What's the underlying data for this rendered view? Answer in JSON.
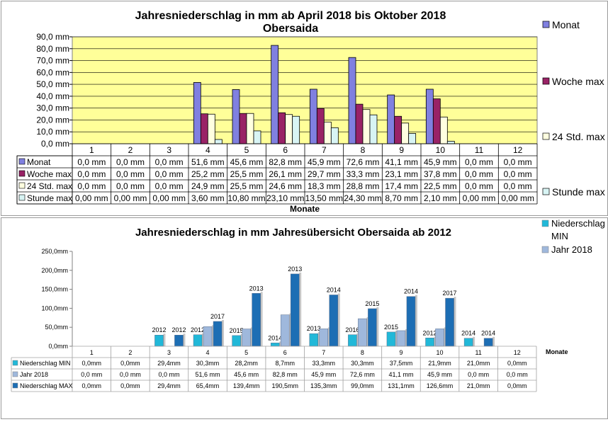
{
  "chart_data": [
    {
      "type": "bar",
      "title": "Jahresniederschlag in mm ab April 2018 bis Oktober 2018",
      "subtitle": "Obersaida",
      "xlabel": "Monate",
      "ylabel": "",
      "ylim": [
        0,
        90
      ],
      "yticks": [
        "0,0 mm",
        "10,0 mm",
        "20,0 mm",
        "30,0 mm",
        "40,0 mm",
        "50,0 mm",
        "60,0 mm",
        "70,0 mm",
        "80,0 mm",
        "90,0 mm"
      ],
      "grid": true,
      "legend_position": "right",
      "categories": [
        "1",
        "2",
        "3",
        "4",
        "5",
        "6",
        "7",
        "8",
        "9",
        "10",
        "11",
        "12"
      ],
      "series": [
        {
          "name": "Monat",
          "color": "#8080e0",
          "values": [
            0,
            0,
            0,
            51.6,
            45.6,
            82.8,
            45.9,
            72.6,
            41.1,
            45.9,
            0,
            0
          ],
          "labels": [
            "0,0 mm",
            "0,0 mm",
            "0,0 mm",
            "51,6 mm",
            "45,6 mm",
            "82,8 mm",
            "45,9 mm",
            "72,6 mm",
            "41,1 mm",
            "45,9 mm",
            "0,0 mm",
            "0,0 mm"
          ]
        },
        {
          "name": "Woche max",
          "color": "#992266",
          "values": [
            0,
            0,
            0,
            25.2,
            25.5,
            26.1,
            29.7,
            33.3,
            23.1,
            37.8,
            0,
            0
          ],
          "labels": [
            "0,0 mm",
            "0,0 mm",
            "0,0 mm",
            "25,2 mm",
            "25,5 mm",
            "26,1 mm",
            "29,7 mm",
            "33,3 mm",
            "23,1 mm",
            "37,8 mm",
            "0,0 mm",
            "0,0 mm"
          ]
        },
        {
          "name": "24 Std. max",
          "color": "#ffffe0",
          "values": [
            0,
            0,
            0,
            24.9,
            25.5,
            24.6,
            18.3,
            28.8,
            17.4,
            22.5,
            0,
            0
          ],
          "labels": [
            "0,0 mm",
            "0,0 mm",
            "0,0 mm",
            "24,9 mm",
            "25,5 mm",
            "24,6 mm",
            "18,3 mm",
            "28,8 mm",
            "17,4 mm",
            "22,5 mm",
            "0,0 mm",
            "0,0 mm"
          ]
        },
        {
          "name": "Stunde max",
          "color": "#d8f4f4",
          "values": [
            0,
            0,
            0,
            3.6,
            10.8,
            23.1,
            13.5,
            24.3,
            8.7,
            2.1,
            0,
            0
          ],
          "labels": [
            "0,00 mm",
            "0,00 mm",
            "0,00 mm",
            "3,60 mm",
            "10,80 mm",
            "23,10 mm",
            "13,50 mm",
            "24,30 mm",
            "8,70 mm",
            "2,10 mm",
            "0,00 mm",
            "0,00 mm"
          ]
        }
      ],
      "colors": {
        "plot_background": "#ffff99"
      }
    },
    {
      "type": "bar",
      "title": "Jahresniederschlag in mm  Jahresübersicht Obersaida ab 2012",
      "xlabel": "Monate",
      "ylabel": "",
      "ylim": [
        0,
        250
      ],
      "yticks": [
        "0,0mm",
        "50,0mm",
        "100,0mm",
        "150,0mm",
        "200,0mm",
        "250,0mm"
      ],
      "grid": false,
      "legend_position": "top-right",
      "categories": [
        "1",
        "2",
        "3",
        "4",
        "5",
        "6",
        "7",
        "8",
        "9",
        "10",
        "11",
        "12"
      ],
      "series": [
        {
          "name": "Niederschlag MIN",
          "color": "#21b8d8",
          "values": [
            0,
            0,
            29.4,
            30.3,
            28.2,
            8.7,
            33.3,
            30.3,
            37.5,
            21.9,
            21.0,
            0
          ],
          "labels": [
            "0,0mm",
            "0,0mm",
            "29,4mm",
            "30,3mm",
            "28,2mm",
            "8,7mm",
            "33,3mm",
            "30,3mm",
            "37,5mm",
            "21,9mm",
            "21,0mm",
            "0,0mm"
          ],
          "years": [
            "",
            "",
            "2012",
            "2012",
            "2015",
            "2014",
            "2013",
            "2016",
            "2015",
            "2012",
            "2014",
            ""
          ]
        },
        {
          "name": "Jahr 2018",
          "color": "#9fb8dc",
          "values": [
            0,
            0,
            0,
            51.6,
            45.6,
            82.8,
            45.9,
            72.6,
            41.1,
            45.9,
            0,
            0
          ],
          "labels": [
            "0,0 mm",
            "0,0 mm",
            "0,0 mm",
            "51,6 mm",
            "45,6 mm",
            "82,8 mm",
            "45,9 mm",
            "72,6 mm",
            "41,1 mm",
            "45,9 mm",
            "0,0 mm",
            "0,0 mm"
          ],
          "years": [
            "",
            "",
            "",
            "",
            "",
            "",
            "",
            "",
            "",
            "",
            "",
            ""
          ]
        },
        {
          "name": "Niederschlag MAX",
          "color": "#1d6eb4",
          "values": [
            0,
            0,
            29.4,
            65.4,
            139.4,
            190.5,
            135.3,
            99.0,
            131.1,
            126.6,
            21.0,
            0
          ],
          "labels": [
            "0,0mm",
            "0,0mm",
            "29,4mm",
            "65,4mm",
            "139,4mm",
            "190,5mm",
            "135,3mm",
            "99,0mm",
            "131,1mm",
            "126,6mm",
            "21,0mm",
            "0,0mm"
          ],
          "years": [
            "",
            "",
            "2012",
            "2017",
            "2013",
            "2013",
            "2014",
            "2015",
            "2014",
            "2017",
            "2014",
            ""
          ]
        }
      ]
    }
  ]
}
